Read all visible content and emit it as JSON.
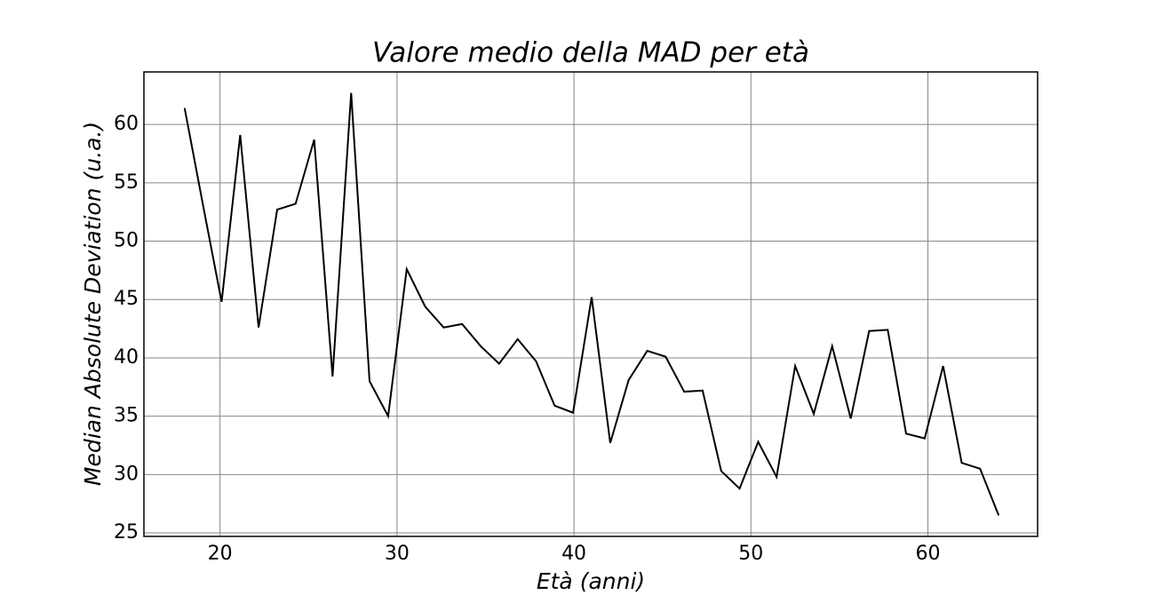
{
  "chart_data": {
    "type": "line",
    "title": "Valore medio della MAD per età",
    "x_label": "Età (anni)",
    "y_label": "Median Absolute Deviation (u.a.)",
    "x": [
      18,
      19.05,
      20.09,
      21.14,
      22.18,
      23.23,
      24.27,
      25.32,
      26.36,
      27.41,
      28.45,
      29.5,
      30.55,
      31.59,
      32.64,
      33.68,
      34.73,
      35.77,
      36.82,
      37.86,
      38.91,
      39.95,
      41,
      42.05,
      43.09,
      44.14,
      45.18,
      46.23,
      47.27,
      48.32,
      49.36,
      50.41,
      51.45,
      52.5,
      53.55,
      54.59,
      55.64,
      56.68,
      57.73,
      58.77,
      59.82,
      60.86,
      61.91,
      62.95,
      64
    ],
    "values": [
      61.4,
      53,
      44.8,
      59.1,
      42.6,
      52.7,
      53.2,
      58.7,
      38.4,
      62.7,
      38.0,
      35.0,
      47.6,
      44.4,
      42.6,
      42.9,
      41.0,
      39.5,
      41.6,
      39.7,
      35.9,
      35.3,
      45.2,
      32.7,
      38.1,
      40.6,
      40.1,
      37.1,
      37.2,
      30.3,
      28.8,
      32.8,
      29.8,
      39.3,
      35.2,
      41.0,
      34.8,
      42.3,
      42.4,
      33.5,
      33.1,
      39.3,
      31.0,
      30.5,
      26.5
    ],
    "color": "#000000",
    "xlim": [
      15.7,
      66.2
    ],
    "xticks": [
      20,
      30,
      40,
      50,
      60
    ],
    "ylim": [
      24.7,
      64.5
    ],
    "yticks": [
      25,
      30,
      35,
      40,
      45,
      50,
      55,
      60
    ],
    "grid": true
  }
}
